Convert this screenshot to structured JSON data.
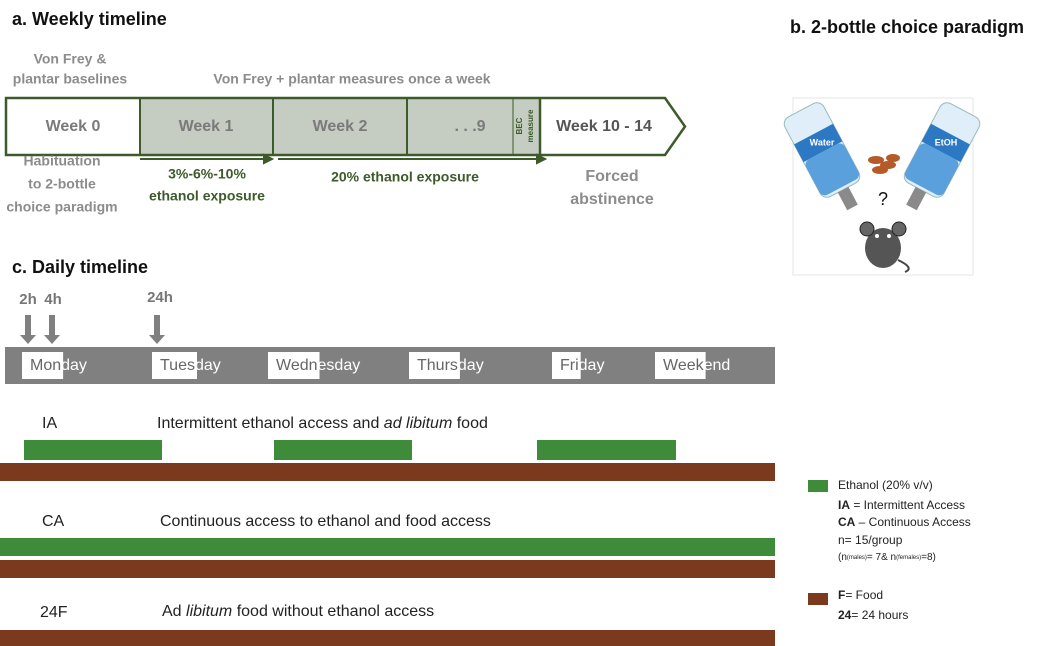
{
  "panel_a": {
    "title": "a. Weekly timeline",
    "baseline_label": [
      "Von Frey &",
      "plantar baselines"
    ],
    "weekly_label": "Von Frey + plantar measures once a week",
    "weeks": [
      "Week 0",
      "Week 1",
      "Week 2",
      ". . .9",
      "Week 10 - 14"
    ],
    "bec": [
      "BEC",
      "measure"
    ],
    "habituation": [
      "Habituation",
      "to 2-bottle",
      "choice paradigm"
    ],
    "ramp": [
      "3%-6%-10%",
      "ethanol exposure"
    ],
    "exposure": "20% ethanol exposure",
    "abstinence": [
      "Forced",
      "abstinence"
    ]
  },
  "panel_b": {
    "title": "b. 2-bottle choice paradigm",
    "bottles": [
      "Water",
      "EtOH"
    ],
    "question": "?"
  },
  "panel_c": {
    "title": "c. Daily timeline",
    "times": [
      "2h",
      "4h",
      "24h"
    ],
    "days": [
      [
        "Mon",
        "day"
      ],
      [
        "Tues",
        "day"
      ],
      [
        "Wedn",
        "esday"
      ],
      [
        "Thurs",
        "day"
      ],
      [
        "Fri",
        "day"
      ],
      [
        "Week",
        "end"
      ]
    ],
    "groups": [
      {
        "name": "IA",
        "description": [
          "Intermittent  ethanol access and ",
          "ad libitum",
          " food"
        ]
      },
      {
        "name": "CA",
        "description": [
          "Continuous access to ethanol and food access"
        ]
      },
      {
        "name": "24F",
        "description": [
          "Ad ",
          "libitum",
          " food without ethanol access"
        ]
      }
    ]
  },
  "legend": {
    "ethanol": [
      "Ethanol (20% v/v)"
    ],
    "ia": [
      "IA",
      " = Intermittent Access"
    ],
    "ca": [
      "CA",
      " – Continuous Access"
    ],
    "n": "n= 15/group",
    "n_split": [
      "(n",
      "(males)",
      "= 7& n",
      "(females)",
      "=8)"
    ],
    "food": [
      "F",
      "= Food"
    ],
    "hours": [
      "24",
      "= 24 hours"
    ]
  }
}
